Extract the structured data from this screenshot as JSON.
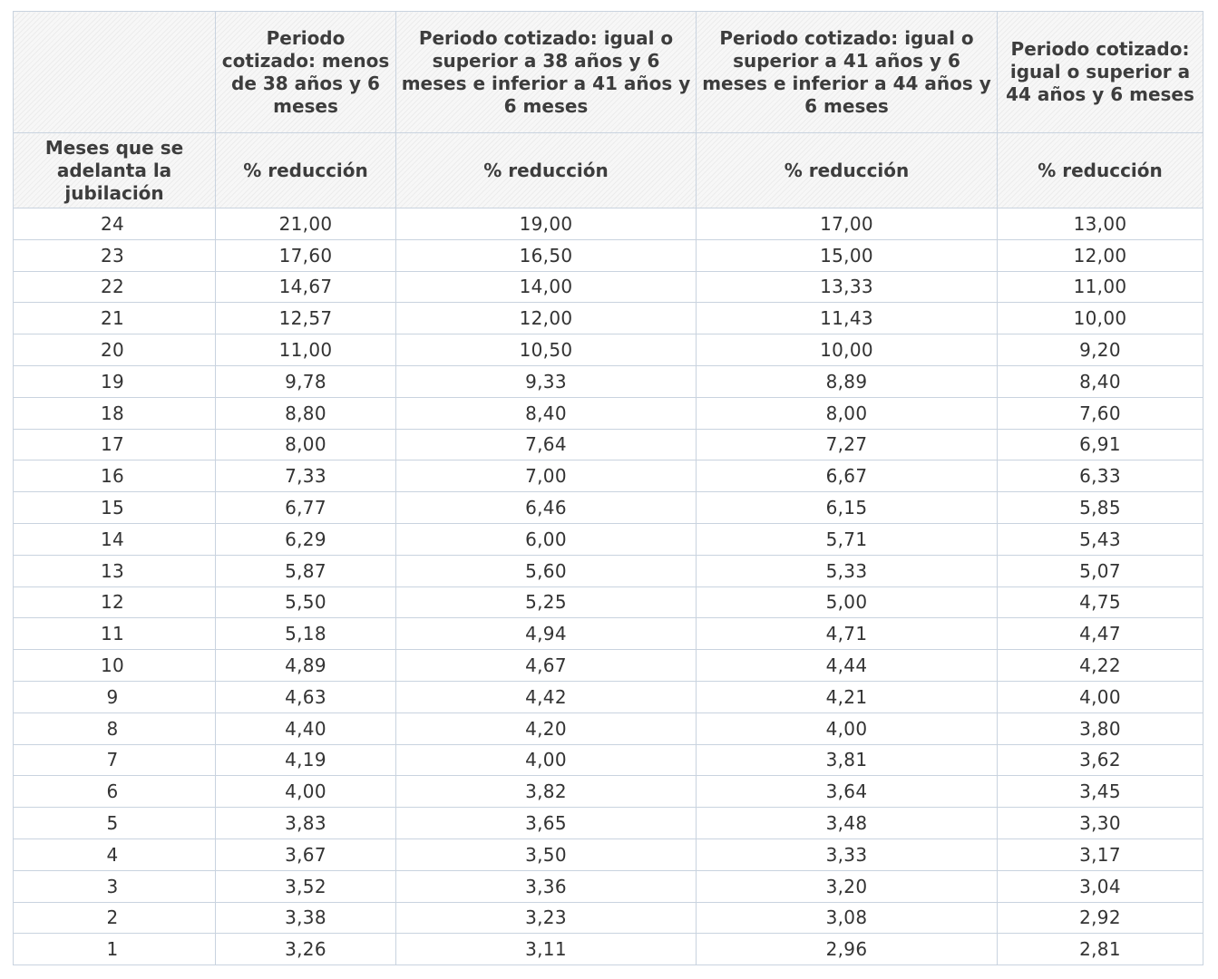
{
  "table": {
    "header_periods": [
      "",
      "Periodo cotizado: menos de 38 años y 6 meses",
      "Periodo cotizado: igual o superior a 38 años y 6 meses e inferior a 41 años y 6 meses",
      "Periodo cotizado: igual o superior a 41 años y 6 meses e inferior a 44 años y 6 meses",
      "Periodo cotizado: igual o superior a 44 años y 6 meses"
    ],
    "header_labels": [
      "Meses que se adelanta la jubilación",
      "% reducción",
      "% reducción",
      "% reducción",
      "% reducción"
    ],
    "rows": [
      [
        "24",
        "21,00",
        "19,00",
        "17,00",
        "13,00"
      ],
      [
        "23",
        "17,60",
        "16,50",
        "15,00",
        "12,00"
      ],
      [
        "22",
        "14,67",
        "14,00",
        "13,33",
        "11,00"
      ],
      [
        "21",
        "12,57",
        "12,00",
        "11,43",
        "10,00"
      ],
      [
        "20",
        "11,00",
        "10,50",
        "10,00",
        "9,20"
      ],
      [
        "19",
        "9,78",
        "9,33",
        "8,89",
        "8,40"
      ],
      [
        "18",
        "8,80",
        "8,40",
        "8,00",
        "7,60"
      ],
      [
        "17",
        "8,00",
        "7,64",
        "7,27",
        "6,91"
      ],
      [
        "16",
        "7,33",
        "7,00",
        "6,67",
        "6,33"
      ],
      [
        "15",
        "6,77",
        "6,46",
        "6,15",
        "5,85"
      ],
      [
        "14",
        "6,29",
        "6,00",
        "5,71",
        "5,43"
      ],
      [
        "13",
        "5,87",
        "5,60",
        "5,33",
        "5,07"
      ],
      [
        "12",
        "5,50",
        "5,25",
        "5,00",
        "4,75"
      ],
      [
        "11",
        "5,18",
        "4,94",
        "4,71",
        "4,47"
      ],
      [
        "10",
        "4,89",
        "4,67",
        "4,44",
        "4,22"
      ],
      [
        "9",
        "4,63",
        "4,42",
        "4,21",
        "4,00"
      ],
      [
        "8",
        "4,40",
        "4,20",
        "4,00",
        "3,80"
      ],
      [
        "7",
        "4,19",
        "4,00",
        "3,81",
        "3,62"
      ],
      [
        "6",
        "4,00",
        "3,82",
        "3,64",
        "3,45"
      ],
      [
        "5",
        "3,83",
        "3,65",
        "3,48",
        "3,30"
      ],
      [
        "4",
        "3,67",
        "3,50",
        "3,33",
        "3,17"
      ],
      [
        "3",
        "3,52",
        "3,36",
        "3,20",
        "3,04"
      ],
      [
        "2",
        "3,38",
        "3,23",
        "3,08",
        "2,92"
      ],
      [
        "1",
        "3,26",
        "3,11",
        "2,96",
        "2,81"
      ]
    ]
  }
}
